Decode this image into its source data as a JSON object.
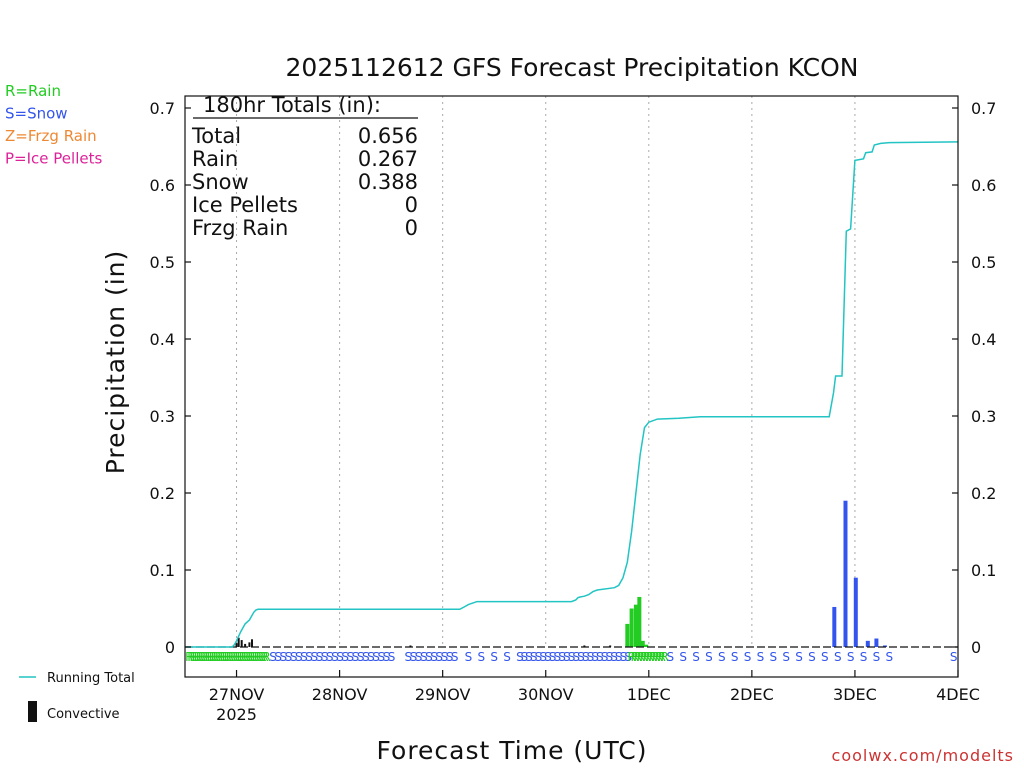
{
  "chart_data": {
    "type": "bar",
    "title": "2025112612 GFS Forecast Precipitation KCON",
    "xlabel": "Forecast Time (UTC)",
    "ylabel": "Precipitation (in)",
    "ylim": [
      0,
      0.7
    ],
    "yticks": [
      "0",
      "0.1",
      "0.2",
      "0.3",
      "0.4",
      "0.5",
      "0.6",
      "0.7"
    ],
    "xticks": [
      {
        "hour": 12,
        "label": "27NOV",
        "sublabel": "2025"
      },
      {
        "hour": 36,
        "label": "28NOV"
      },
      {
        "hour": 60,
        "label": "29NOV"
      },
      {
        "hour": 84,
        "label": "30NOV"
      },
      {
        "hour": 108,
        "label": "1DEC"
      },
      {
        "hour": 132,
        "label": "2DEC"
      },
      {
        "hour": 156,
        "label": "3DEC"
      },
      {
        "hour": 180,
        "label": "4DEC"
      }
    ],
    "xrange_hours": [
      0,
      180
    ],
    "legend": [
      {
        "label": "R=Rain",
        "color": "#22cc22"
      },
      {
        "label": "S=Snow",
        "color": "#3355ee"
      },
      {
        "label": "Z=Frzg Rain",
        "color": "#ee8833"
      },
      {
        "label": "P=Ice Pellets",
        "color": "#dd2299"
      }
    ],
    "series_legend": {
      "running_total": "Running Total",
      "convective": "Convective"
    },
    "totals": {
      "header": "180hr Totals (in):",
      "rows": [
        {
          "label": "Total",
          "value": "0.656"
        },
        {
          "label": "Rain",
          "value": "0.267"
        },
        {
          "label": "Snow",
          "value": "0.388"
        },
        {
          "label": "Ice Pellets",
          "value": "0"
        },
        {
          "label": "Frzg Rain",
          "value": "0"
        }
      ]
    },
    "colors": {
      "rain": "#22cc22",
      "snow": "#3355ee",
      "convective": "#111111",
      "running_total": "#22c4c4",
      "grid": "#aaaaaa"
    },
    "running_total": [
      [
        0,
        0
      ],
      [
        11,
        0
      ],
      [
        11.5,
        0.003
      ],
      [
        12,
        0.008
      ],
      [
        13,
        0.02
      ],
      [
        14,
        0.03
      ],
      [
        15,
        0.035
      ],
      [
        16,
        0.045
      ],
      [
        16.5,
        0.048
      ],
      [
        17,
        0.049
      ],
      [
        64,
        0.049
      ],
      [
        65,
        0.052
      ],
      [
        66,
        0.055
      ],
      [
        67,
        0.057
      ],
      [
        68,
        0.059
      ],
      [
        90,
        0.059
      ],
      [
        91,
        0.061
      ],
      [
        91.5,
        0.064
      ],
      [
        92,
        0.065
      ],
      [
        93,
        0.066
      ],
      [
        94,
        0.068
      ],
      [
        95,
        0.072
      ],
      [
        96,
        0.074
      ],
      [
        100,
        0.077
      ],
      [
        101,
        0.08
      ],
      [
        102,
        0.09
      ],
      [
        103,
        0.11
      ],
      [
        104,
        0.15
      ],
      [
        105,
        0.2
      ],
      [
        106,
        0.25
      ],
      [
        107,
        0.285
      ],
      [
        108,
        0.292
      ],
      [
        110,
        0.296
      ],
      [
        115,
        0.297
      ],
      [
        120,
        0.299
      ],
      [
        150,
        0.299
      ],
      [
        151,
        0.33
      ],
      [
        151.5,
        0.352
      ],
      [
        153,
        0.352
      ],
      [
        154,
        0.54
      ],
      [
        155,
        0.543
      ],
      [
        156,
        0.632
      ],
      [
        158,
        0.634
      ],
      [
        158.5,
        0.642
      ],
      [
        160,
        0.643
      ],
      [
        160.5,
        0.652
      ],
      [
        162,
        0.654
      ],
      [
        164,
        0.655
      ],
      [
        180,
        0.656
      ]
    ],
    "bars": [
      {
        "h": 12,
        "v": 0.005,
        "type": "convective"
      },
      {
        "h": 12.5,
        "v": 0.012,
        "type": "convective"
      },
      {
        "h": 13.2,
        "v": 0.009,
        "type": "convective"
      },
      {
        "h": 14,
        "v": 0.004,
        "type": "convective"
      },
      {
        "h": 15,
        "v": 0.006,
        "type": "convective"
      },
      {
        "h": 15.6,
        "v": 0.01,
        "type": "convective"
      },
      {
        "h": 52.5,
        "v": 0.002,
        "type": "convective"
      },
      {
        "h": 93,
        "v": 0.002,
        "type": "convective"
      },
      {
        "h": 99,
        "v": 0.002,
        "type": "convective"
      },
      {
        "h": 103,
        "v": 0.03,
        "type": "rain"
      },
      {
        "h": 104,
        "v": 0.05,
        "type": "rain"
      },
      {
        "h": 105,
        "v": 0.055,
        "type": "rain"
      },
      {
        "h": 105.8,
        "v": 0.065,
        "type": "rain"
      },
      {
        "h": 106.6,
        "v": 0.008,
        "type": "rain"
      },
      {
        "h": 107.4,
        "v": 0.003,
        "type": "rain"
      },
      {
        "h": 151.2,
        "v": 0.052,
        "type": "snow"
      },
      {
        "h": 153.8,
        "v": 0.19,
        "type": "snow"
      },
      {
        "h": 156.2,
        "v": 0.09,
        "type": "snow"
      },
      {
        "h": 159,
        "v": 0.008,
        "type": "snow"
      },
      {
        "h": 161,
        "v": 0.011,
        "type": "snow"
      },
      {
        "h": 163,
        "v": 0.002,
        "type": "snow"
      }
    ],
    "ptype_marks": [
      {
        "from": 1,
        "to": 19,
        "step": 0.5,
        "symbol": "R",
        "type": "rain"
      },
      {
        "from": 20.5,
        "to": 49,
        "step": 1.2,
        "symbol": "S",
        "type": "snow"
      },
      {
        "from": 52,
        "to": 63,
        "step": 1.2,
        "symbol": "S",
        "type": "snow"
      },
      {
        "from": 66,
        "to": 78,
        "step": 3,
        "symbol": "S",
        "type": "snow"
      },
      {
        "from": 79,
        "to": 104,
        "step": 1.1,
        "symbol": "S",
        "type": "snow"
      },
      {
        "from": 104,
        "to": 112,
        "step": 0.7,
        "symbol": "R",
        "type": "rain"
      },
      {
        "from": 113,
        "to": 165,
        "step": 3,
        "symbol": "S",
        "type": "snow"
      },
      {
        "from": 179,
        "to": 179,
        "step": 1,
        "symbol": "S",
        "type": "snow"
      }
    ]
  },
  "credit": "coolwx.com/modelts"
}
